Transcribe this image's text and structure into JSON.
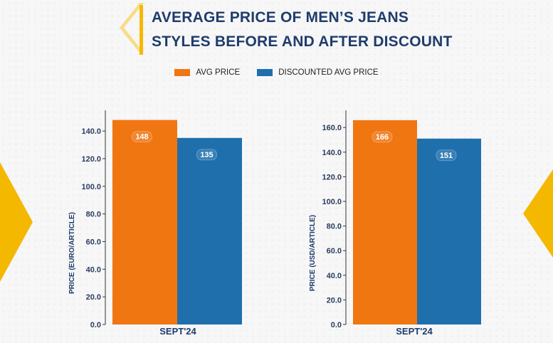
{
  "title": {
    "line1": "AVERAGE PRICE OF MEN’S JEANS",
    "line2": "STYLES BEFORE AND AFTER DISCOUNT"
  },
  "legend": {
    "items": [
      {
        "label": "AVG PRICE",
        "color": "#f07612"
      },
      {
        "label": "DISCOUNTED AVG PRICE",
        "color": "#1f6fad"
      }
    ]
  },
  "colors": {
    "accent": "#f5b800",
    "title": "#1f3c6b",
    "avg": "#f07612",
    "discounted": "#1f6fad"
  },
  "chart_data": [
    {
      "type": "bar",
      "categories": [
        "SEPT'24"
      ],
      "series": [
        {
          "name": "AVG PRICE",
          "values": [
            148
          ]
        },
        {
          "name": "DISCOUNTED AVG PRICE",
          "values": [
            135
          ]
        }
      ],
      "data_labels": [
        "148",
        "135"
      ],
      "ylabel": "PRICE (EURO/ARTICLE)",
      "ylim": [
        0,
        155
      ],
      "yticks": [
        0,
        20,
        40,
        60,
        80,
        100,
        120,
        140
      ],
      "ytick_labels": [
        "0.0",
        "20.0",
        "40.0",
        "60.0",
        "80.0",
        "100.0",
        "120.0",
        "140.0"
      ]
    },
    {
      "type": "bar",
      "categories": [
        "SEPT'24"
      ],
      "series": [
        {
          "name": "AVG PRICE",
          "values": [
            166
          ]
        },
        {
          "name": "DISCOUNTED AVG PRICE",
          "values": [
            151
          ]
        }
      ],
      "data_labels": [
        "166",
        "151"
      ],
      "ylabel": "PRICE (USD/ARTICLE)",
      "ylim": [
        0,
        174
      ],
      "yticks": [
        0,
        20,
        40,
        60,
        80,
        100,
        120,
        140,
        160
      ],
      "ytick_labels": [
        "0.0",
        "20.0",
        "40.0",
        "60.0",
        "80.0",
        "100.0",
        "120.0",
        "140.0",
        "160.0"
      ]
    }
  ]
}
